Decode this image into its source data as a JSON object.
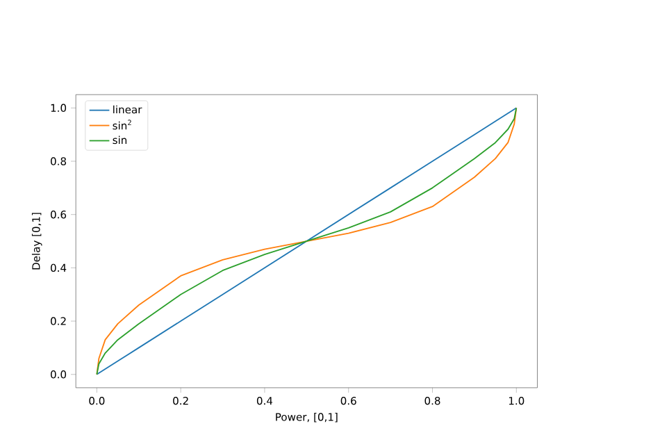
{
  "chart_data": {
    "type": "line",
    "xlabel": "Power, [0,1]",
    "ylabel": "Delay [0,1]",
    "xlim": [
      -0.05,
      1.05
    ],
    "ylim": [
      -0.05,
      1.05
    ],
    "xticks": [
      {
        "value": 0,
        "label": "0.0"
      },
      0.2,
      0.4,
      0.6,
      0.8,
      {
        "value": 1,
        "label": "1.0"
      }
    ],
    "yticks": [
      {
        "value": 0,
        "label": "0.0"
      },
      0.2,
      0.4,
      0.6,
      0.8,
      {
        "value": 1,
        "label": "1.0"
      }
    ],
    "legend": "top left",
    "grid": false,
    "x": [
      0,
      0.005,
      0.02,
      0.05,
      0.1,
      0.2,
      0.3,
      0.4,
      0.5,
      0.6,
      0.7,
      0.8,
      0.9,
      0.95,
      0.98,
      0.995,
      1
    ],
    "series": [
      {
        "name": "linear",
        "color": "#1f77b4",
        "values": [
          0,
          0.005,
          0.02,
          0.05,
          0.1,
          0.2,
          0.3,
          0.4,
          0.5,
          0.6,
          0.7,
          0.8,
          0.9,
          0.95,
          0.98,
          0.995,
          1
        ]
      },
      {
        "name": "sin$^{2}$",
        "color": "#ff7f0e",
        "values": [
          0,
          0.06,
          0.13,
          0.19,
          0.26,
          0.37,
          0.43,
          0.47,
          0.5,
          0.53,
          0.57,
          0.63,
          0.74,
          0.81,
          0.87,
          0.94,
          1
        ]
      },
      {
        "name": "sin",
        "color": "#2ca02c",
        "values": [
          0,
          0.04,
          0.08,
          0.13,
          0.19,
          0.3,
          0.39,
          0.45,
          0.5,
          0.55,
          0.61,
          0.7,
          0.81,
          0.87,
          0.92,
          0.96,
          1
        ]
      }
    ]
  }
}
